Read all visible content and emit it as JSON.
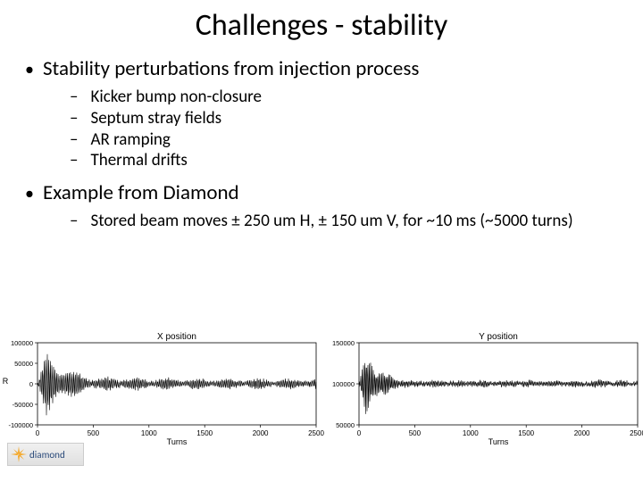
{
  "title": "Challenges - stability",
  "bullets": {
    "b1": "Stability perturbations from injection process",
    "sub1": "Kicker bump non-closure",
    "sub2": "Septum stray fields",
    "sub3": "AR ramping",
    "sub4": "Thermal drifts",
    "b2": "Example from Diamond",
    "sub5": "Stored beam moves ± 250 um H, ± 150 um V, for ~10 ms (~5000 turns)"
  },
  "logo_text": "diamond",
  "chart_left": {
    "title": "X position",
    "xlabel": "Turns",
    "ylabel": "R",
    "xlim": [
      0,
      2500
    ],
    "xtick_step": 500,
    "ylim": [
      -100000,
      100000
    ],
    "ytick_step": 50000,
    "line_color": "#000000",
    "background_color": "#ffffff",
    "axis_color": "#000000",
    "title_fontsize": 10,
    "label_fontsize": 9
  },
  "chart_right": {
    "title": "Y position",
    "xlabel": "Turns",
    "xlim": [
      0,
      2500
    ],
    "xtick_step": 500,
    "ylim": [
      50000,
      150000
    ],
    "ytick_center": 100000,
    "ytick_step": 50000,
    "line_color": "#000000",
    "background_color": "#ffffff",
    "axis_color": "#000000",
    "title_fontsize": 10,
    "label_fontsize": 9
  },
  "logo_colors": {
    "burst": "#f5a623",
    "text": "#2a4a7a"
  }
}
